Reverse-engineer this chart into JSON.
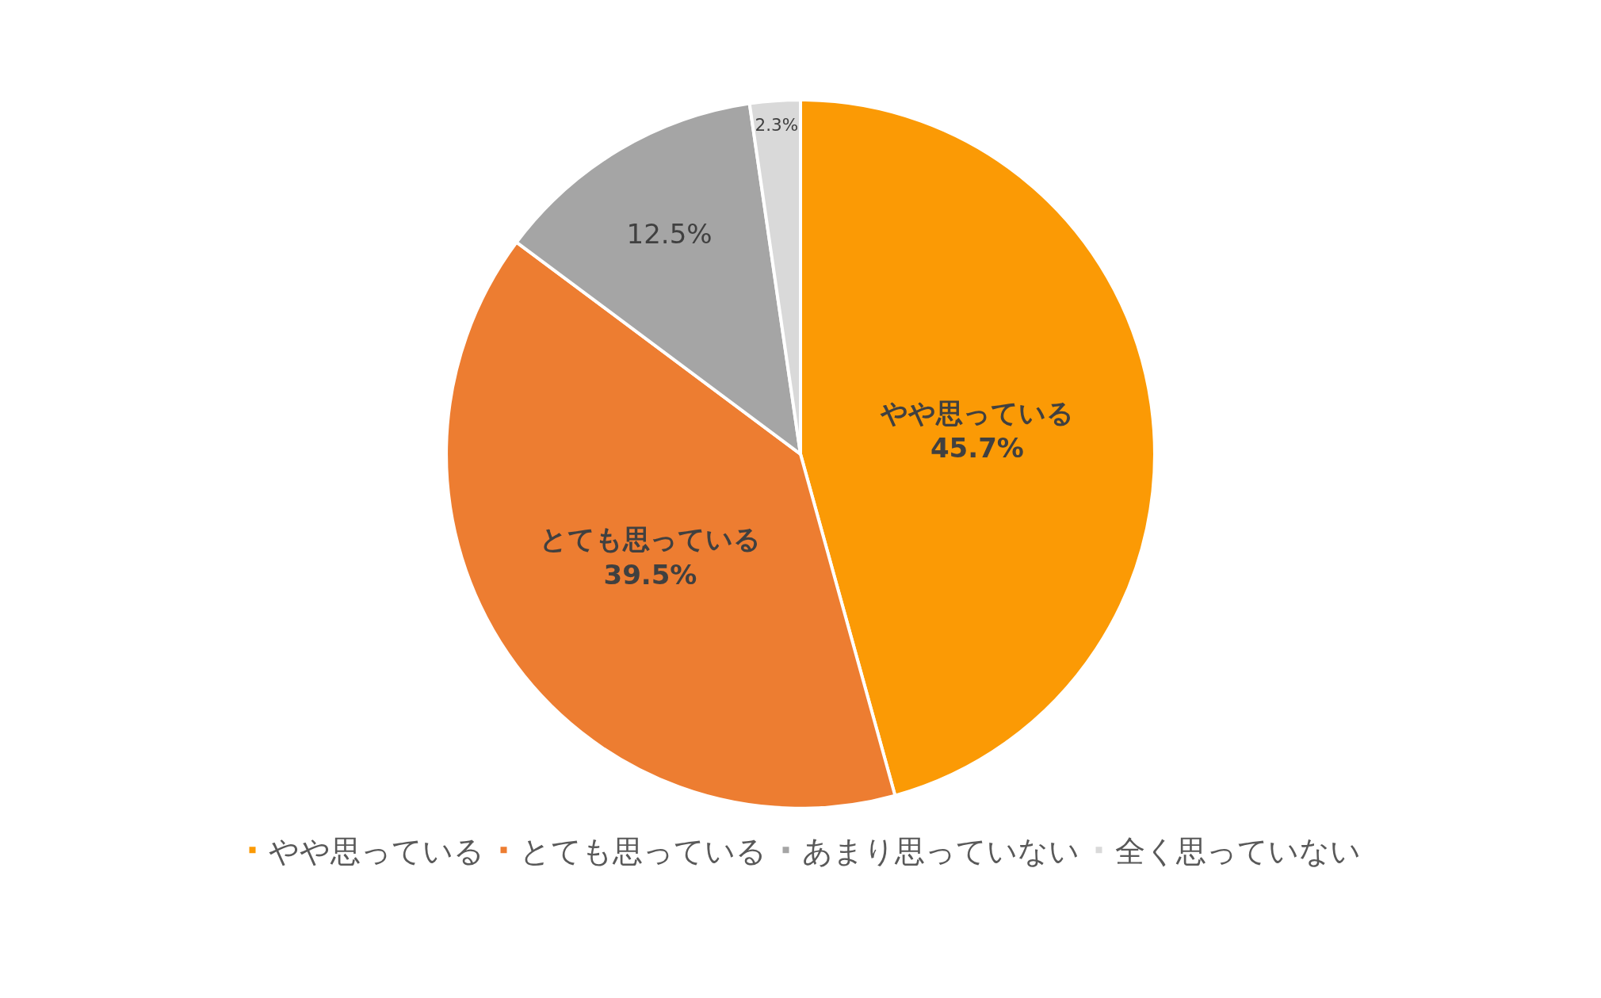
{
  "chart_data": {
    "type": "pie",
    "categories": [
      "やや思っている",
      "とても思っている",
      "あまり思っていない",
      "全く思っていない"
    ],
    "values": [
      45.7,
      39.5,
      12.5,
      2.3
    ],
    "colors": [
      "#fb9a05",
      "#ed7d31",
      "#a5a5a5",
      "#d9d9d9"
    ],
    "value_labels": [
      "やや思っている\n45.7%",
      "とても思っている\n39.5%",
      "12.5%",
      "2.3%"
    ],
    "legend": "bottom"
  }
}
